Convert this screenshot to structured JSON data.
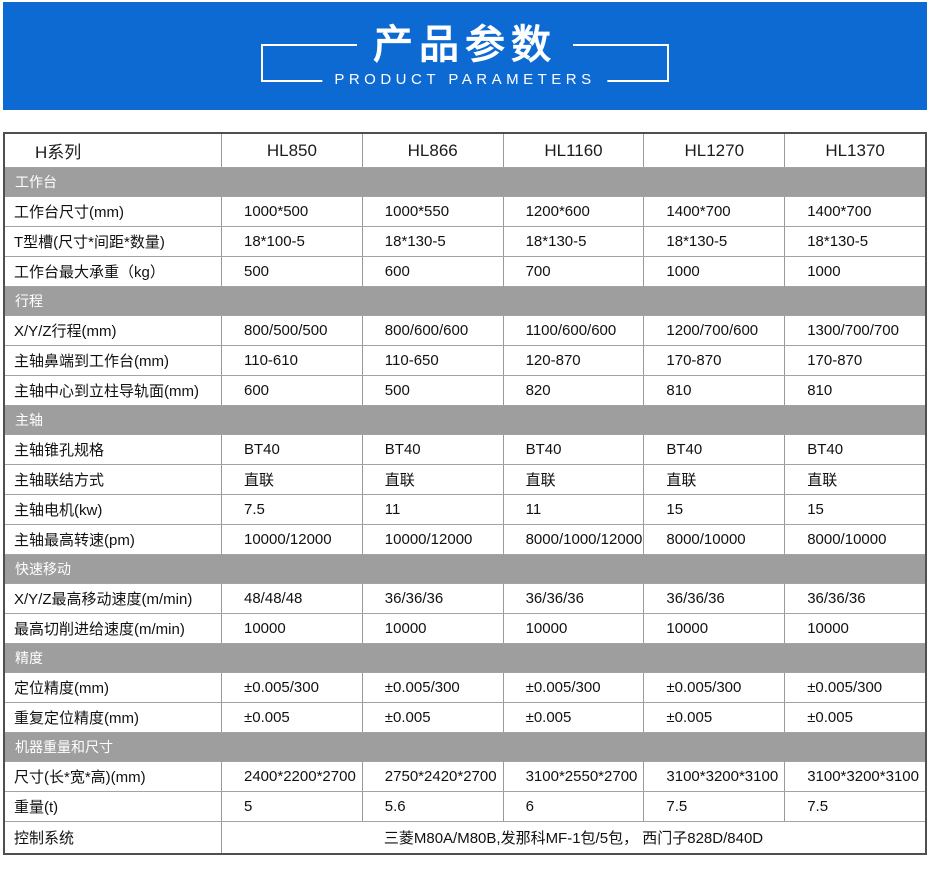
{
  "theme": {
    "banner_blue": "#0d6ad3",
    "section_gray": "#9e9e9e",
    "table_border_dark": "#4f4f4f",
    "grid_line": "#a3a3a3"
  },
  "banner": {
    "title": "产品参数",
    "subtitle": "PRODUCT PARAMETERS"
  },
  "table": {
    "columns": [
      "H系列",
      "HL850",
      "HL866",
      "HL1160",
      "HL1270",
      "HL1370"
    ],
    "rows": [
      {
        "type": "section",
        "label": "工作台"
      },
      {
        "type": "data",
        "label": "工作台尺寸(mm)",
        "values": [
          "1000*500",
          "1000*550",
          "1200*600",
          "1400*700",
          "1400*700"
        ]
      },
      {
        "type": "data",
        "label": "T型槽(尺寸*间距*数量)",
        "values": [
          "18*100-5",
          "18*130-5",
          "18*130-5",
          "18*130-5",
          "18*130-5"
        ]
      },
      {
        "type": "data",
        "label": "工作台最大承重（kg）",
        "values": [
          "500",
          "600",
          "700",
          "1000",
          "1000"
        ]
      },
      {
        "type": "section",
        "label": "行程"
      },
      {
        "type": "data",
        "label": "X/Y/Z行程(mm)",
        "values": [
          "800/500/500",
          "800/600/600",
          "1100/600/600",
          "1200/700/600",
          "1300/700/700"
        ]
      },
      {
        "type": "data",
        "label": "主轴鼻端到工作台(mm)",
        "values": [
          "110-610",
          "110-650",
          "120-870",
          "170-870",
          "170-870"
        ]
      },
      {
        "type": "data",
        "label": "主轴中心到立柱导轨面(mm)",
        "values": [
          "600",
          "500",
          "820",
          "810",
          "810"
        ]
      },
      {
        "type": "section",
        "label": "主轴"
      },
      {
        "type": "data",
        "label": "主轴锥孔规格",
        "values": [
          "BT40",
          "BT40",
          "BT40",
          "BT40",
          "BT40"
        ]
      },
      {
        "type": "data",
        "label": "主轴联结方式",
        "values": [
          "直联",
          "直联",
          "直联",
          "直联",
          "直联"
        ]
      },
      {
        "type": "data",
        "label": "主轴电机(kw)",
        "values": [
          "7.5",
          "11",
          "11",
          "15",
          "15"
        ]
      },
      {
        "type": "data",
        "label": "主轴最高转速(pm)",
        "values": [
          "10000/12000",
          "10000/12000",
          "8000/1000/12000",
          "8000/10000",
          "8000/10000"
        ]
      },
      {
        "type": "section",
        "label": "快速移动"
      },
      {
        "type": "data",
        "label": "X/Y/Z最高移动速度(m/min)",
        "values": [
          "48/48/48",
          "36/36/36",
          "36/36/36",
          "36/36/36",
          "36/36/36"
        ]
      },
      {
        "type": "data",
        "label": "最高切削进给速度(m/min)",
        "values": [
          "10000",
          "10000",
          "10000",
          "10000",
          "10000"
        ]
      },
      {
        "type": "section",
        "label": "精度"
      },
      {
        "type": "data",
        "label": "定位精度(mm)",
        "values": [
          "±0.005/300",
          "±0.005/300",
          "±0.005/300",
          "±0.005/300",
          "±0.005/300"
        ]
      },
      {
        "type": "data",
        "label": "重复定位精度(mm)",
        "values": [
          "±0.005",
          "±0.005",
          "±0.005",
          "±0.005",
          "±0.005"
        ]
      },
      {
        "type": "section",
        "label": "机器重量和尺寸"
      },
      {
        "type": "data",
        "label": "尺寸(长*宽*高)(mm)",
        "values": [
          "2400*2200*2700",
          "2750*2420*2700",
          "3100*2550*2700",
          "3100*3200*3100",
          "3100*3200*3100"
        ]
      },
      {
        "type": "data",
        "label": "重量(t)",
        "values": [
          "5",
          "5.6",
          "6",
          "7.5",
          "7.5"
        ]
      },
      {
        "type": "merged",
        "label": "控制系统",
        "value": "三菱M80A/M80B,发那科MF-1包/5包， 西门子828D/840D"
      }
    ]
  }
}
